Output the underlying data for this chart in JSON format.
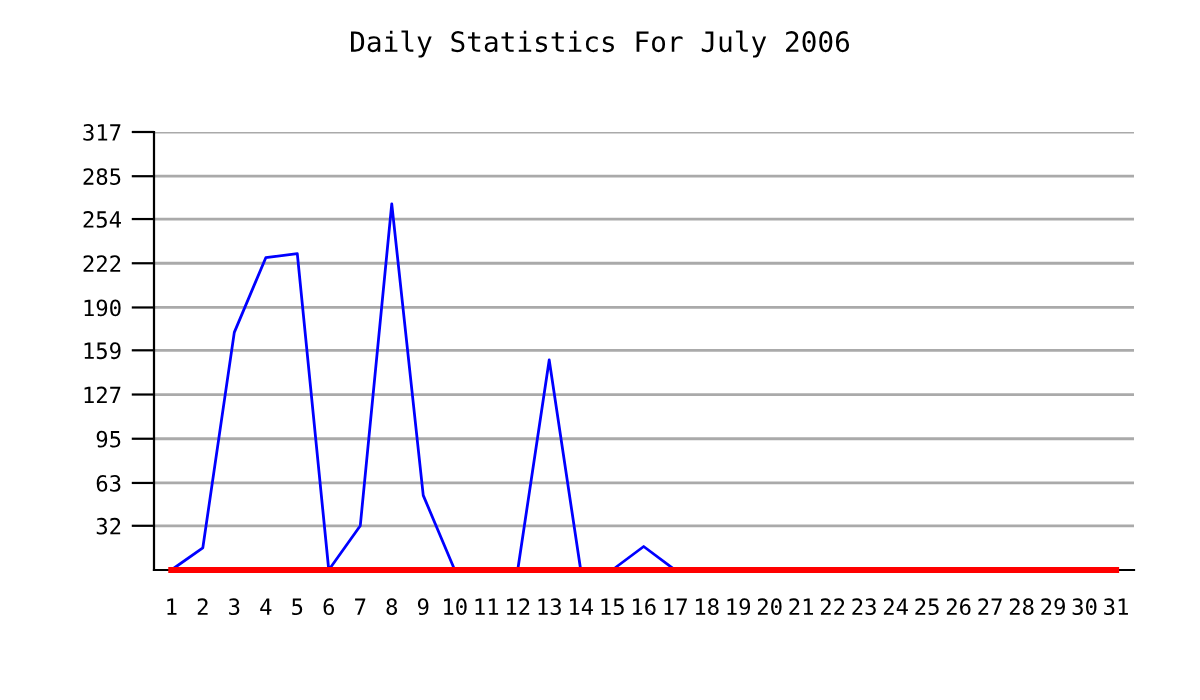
{
  "chart_data": {
    "type": "line",
    "title": "Daily Statistics For July 2006",
    "categories": [
      "1",
      "2",
      "3",
      "4",
      "5",
      "6",
      "7",
      "8",
      "9",
      "10",
      "11",
      "12",
      "13",
      "14",
      "15",
      "16",
      "17",
      "18",
      "19",
      "20",
      "21",
      "22",
      "23",
      "24",
      "25",
      "26",
      "27",
      "28",
      "29",
      "30",
      "31"
    ],
    "series": [
      {
        "color": "#0000ff",
        "values": [
          0,
          16,
          172,
          226,
          229,
          0,
          32,
          265,
          54,
          0,
          0,
          0,
          152,
          0,
          0,
          17,
          0,
          null,
          null,
          null,
          null,
          null,
          null,
          null,
          null,
          null,
          null,
          null,
          null,
          null,
          null
        ]
      },
      {
        "color": "#ff0000",
        "values": [
          0,
          0,
          0,
          0,
          0,
          0,
          0,
          0,
          0,
          0,
          0,
          0,
          0,
          0,
          0,
          0,
          0,
          0,
          0,
          0,
          0,
          0,
          0,
          0,
          0,
          0,
          0,
          0,
          0,
          0,
          0
        ]
      }
    ],
    "ylim": [
      0,
      317
    ],
    "yticks": [
      32,
      63,
      95,
      127,
      159,
      190,
      222,
      254,
      285,
      317
    ],
    "grid": "y",
    "marker": "none",
    "line_style": "solid"
  }
}
